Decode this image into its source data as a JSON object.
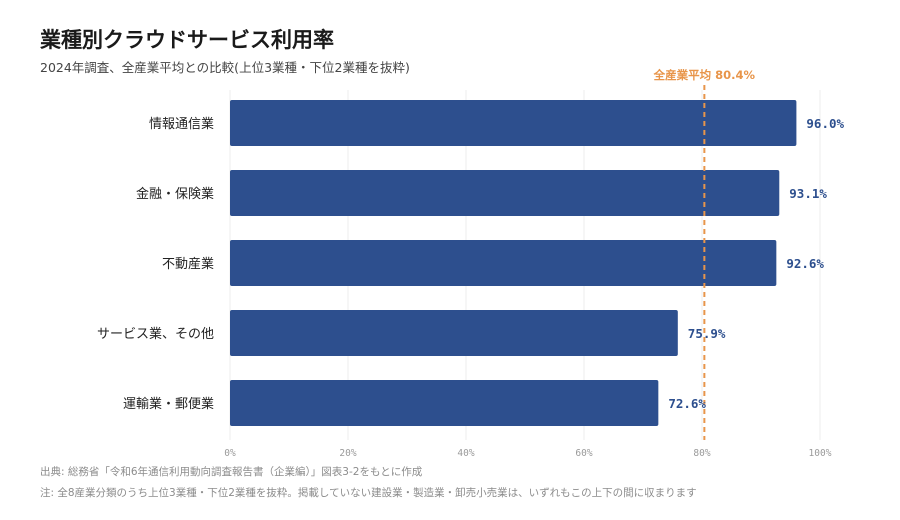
{
  "title": "業種別クラウドサービス利用率",
  "subtitle": "2024年調査、全産業平均との比較(上位3業種・下位2業種を抜粋)",
  "chart_data": {
    "type": "bar",
    "orientation": "horizontal",
    "categories": [
      "情報通信業",
      "金融・保険業",
      "不動産業",
      "サービス業、その他",
      "運輸業・郵便業"
    ],
    "values": [
      96.0,
      93.1,
      92.6,
      75.9,
      72.6
    ],
    "value_labels": [
      "96.0%",
      "93.1%",
      "92.6%",
      "75.9%",
      "72.6%"
    ],
    "xlim": [
      0,
      100
    ],
    "xticks": [
      0,
      20,
      40,
      60,
      80,
      100
    ],
    "xtick_labels": [
      "0%",
      "20%",
      "40%",
      "60%",
      "80%",
      "100%"
    ],
    "reference_line": {
      "value": 80.4,
      "label": "全産業平均 80.4%"
    },
    "grid": "vertical",
    "colors": {
      "bar": "#2d4f8e",
      "reference": "#e8954a",
      "grid": "#ececec"
    }
  },
  "footnotes": {
    "source": "出典: 総務省「令和6年通信利用動向調査報告書（企業編）」図表3-2をもとに作成",
    "note": "注: 全8産業分類のうち上位3業種・下位2業種を抜粋。掲載していない建設業・製造業・卸売小売業は、いずれもこの上下の間に収まります"
  }
}
